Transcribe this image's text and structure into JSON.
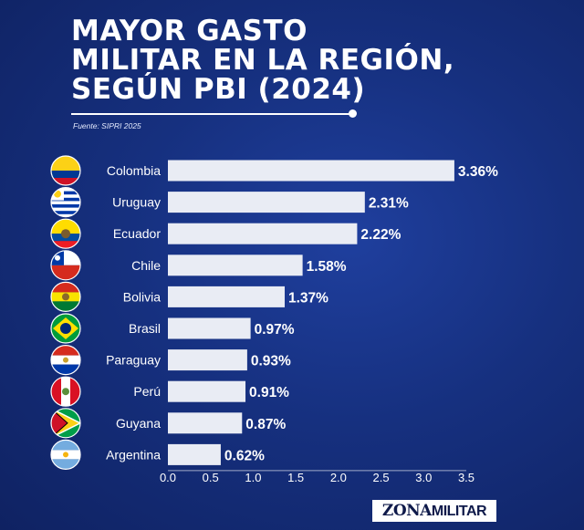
{
  "title_lines": [
    "MAYOR GASTO",
    "MILITAR EN LA REGIÓN,",
    "SEGÚN PBI (2024)"
  ],
  "source": "Fuente: SIPRI 2025",
  "watermark": {
    "part1": "ZONA",
    "part2": "MILITAR"
  },
  "colors": {
    "bar": "#e9ecf4",
    "text": "#ffffff",
    "axis": "#ffffff"
  },
  "chart_data": {
    "type": "bar",
    "orientation": "horizontal",
    "title": "MAYOR GASTO MILITAR EN LA REGIÓN, SEGÚN PBI (2024)",
    "categories": [
      "Colombia",
      "Uruguay",
      "Ecuador",
      "Chile",
      "Bolivia",
      "Brasil",
      "Paraguay",
      "Perú",
      "Guyana",
      "Argentina"
    ],
    "values": [
      3.36,
      2.31,
      2.22,
      1.58,
      1.37,
      0.97,
      0.93,
      0.91,
      0.87,
      0.62
    ],
    "value_labels": [
      "3.36%",
      "2.31%",
      "2.22%",
      "1.58%",
      "1.37%",
      "0.97%",
      "0.93%",
      "0.91%",
      "0.87%",
      "0.62%"
    ],
    "xticks": [
      "0.0",
      "0.5",
      "1.0",
      "1.5",
      "2.0",
      "2.5",
      "3.0",
      "3.5"
    ],
    "xlim": [
      0,
      3.5
    ],
    "xlabel": "",
    "ylabel": "",
    "flag_icons": [
      "colombia-flag-icon",
      "uruguay-flag-icon",
      "ecuador-flag-icon",
      "chile-flag-icon",
      "bolivia-flag-icon",
      "brasil-flag-icon",
      "paraguay-flag-icon",
      "peru-flag-icon",
      "guyana-flag-icon",
      "argentina-flag-icon"
    ]
  }
}
